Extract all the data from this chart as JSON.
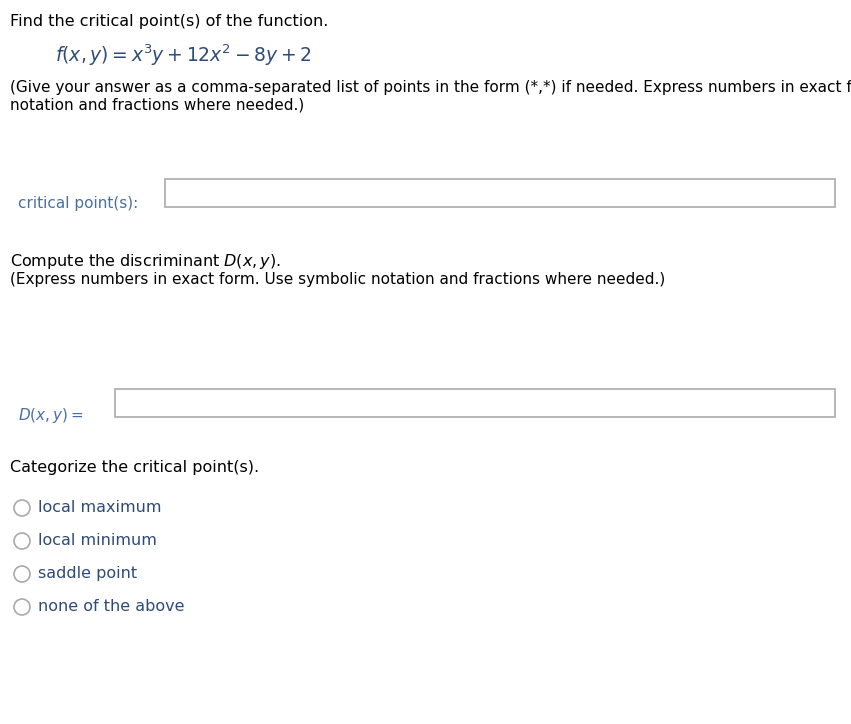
{
  "bg_color": "#ffffff",
  "title_text": "Find the critical point(s) of the function.",
  "function_text": "$f(x, y) = x^3y + 12x^2 - 8y + 2$",
  "instruction1": "(Give your answer as a comma-separated list of points in the form (*,*) if needed. Express numbers in exact form. Use symbolic",
  "instruction1b": "notation and fractions where needed.)",
  "label_critical": "critical point(s):",
  "section2_title": "Compute the discriminant $D(x, y)$.",
  "section2_inst": "(Express numbers in exact form. Use symbolic notation and fractions where needed.)",
  "label_discriminant": "$D(x, y) =$",
  "section3_title": "Categorize the critical point(s).",
  "radio_options": [
    "local maximum",
    "local minimum",
    "saddle point",
    "none of the above"
  ],
  "text_color": "#000000",
  "blue_color": "#2e4a7a",
  "label_blue": "#4a6fa5",
  "box_edge_color": "#aaaaaa",
  "radio_edge_color": "#aaaaaa",
  "title_fontsize": 11.5,
  "func_fontsize": 13.5,
  "body_fontsize": 11,
  "label_fontsize": 11,
  "section_title_fontsize": 11.5,
  "radio_fontsize": 11.5,
  "fig_width": 8.51,
  "fig_height": 7.24,
  "dpi": 100
}
